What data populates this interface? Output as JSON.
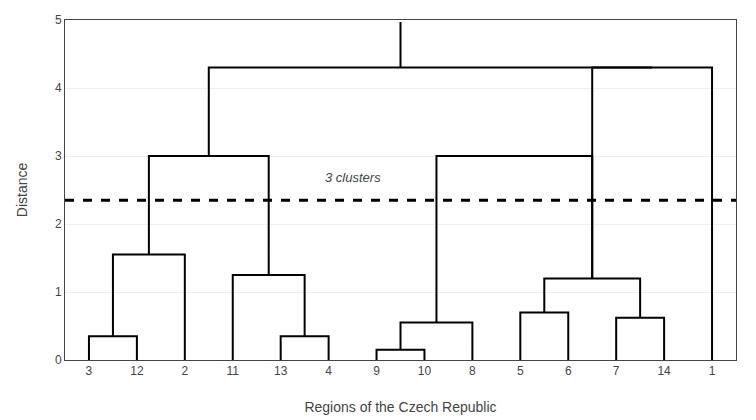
{
  "chart_data": {
    "type": "dendrogram",
    "xlabel": "Regions of the Czech Republic",
    "ylabel": "Distance",
    "categories": [
      "3",
      "12",
      "2",
      "11",
      "13",
      "4",
      "9",
      "10",
      "8",
      "5",
      "6",
      "7",
      "14",
      "1"
    ],
    "merges": [
      {
        "left": 0.0,
        "right": 1.0,
        "left_bottom": 0.0,
        "right_bottom": 0.0,
        "height": 0.35
      },
      {
        "left": 0.5,
        "right": 2.0,
        "left_bottom": 0.35,
        "right_bottom": 0.0,
        "height": 1.55
      },
      {
        "left": 4.0,
        "right": 5.0,
        "left_bottom": 0.0,
        "right_bottom": 0.0,
        "height": 0.35
      },
      {
        "left": 3.0,
        "right": 4.5,
        "left_bottom": 0.0,
        "right_bottom": 0.35,
        "height": 1.25
      },
      {
        "left": 1.25,
        "right": 3.75,
        "left_bottom": 1.55,
        "right_bottom": 1.25,
        "height": 3.0
      },
      {
        "left": 6.0,
        "right": 7.0,
        "left_bottom": 0.0,
        "right_bottom": 0.0,
        "height": 0.15
      },
      {
        "left": 6.5,
        "right": 8.0,
        "left_bottom": 0.15,
        "right_bottom": 0.0,
        "height": 0.55
      },
      {
        "left": 9.0,
        "right": 10.0,
        "left_bottom": 0.0,
        "right_bottom": 0.0,
        "height": 0.7
      },
      {
        "left": 11.0,
        "right": 12.0,
        "left_bottom": 0.0,
        "right_bottom": 0.0,
        "height": 0.62
      },
      {
        "left": 9.5,
        "right": 11.5,
        "left_bottom": 0.7,
        "right_bottom": 0.62,
        "height": 1.2
      },
      {
        "left": 10.5,
        "right": 13.0,
        "left_bottom": 1.2,
        "right_bottom": 0.0,
        "height": 4.3
      },
      {
        "left": 7.25,
        "right": 10.5,
        "left_bottom": 0.55,
        "right_bottom": 1.2,
        "height": 3.0
      },
      {
        "left": 2.5,
        "right": 11.75,
        "left_bottom": 3.0,
        "right_bottom": 4.3,
        "height": 4.3
      }
    ],
    "top_tick": {
      "x": 6.5,
      "bottom": 4.3,
      "top": 4.97
    },
    "threshold": {
      "y": 2.35,
      "label": "3 clusters",
      "label_x": 5.5,
      "label_y": 2.55
    },
    "ylim": [
      0,
      5
    ],
    "yticks": [
      0,
      1,
      2,
      3,
      4,
      5
    ],
    "grid": true,
    "color": "#000000"
  }
}
